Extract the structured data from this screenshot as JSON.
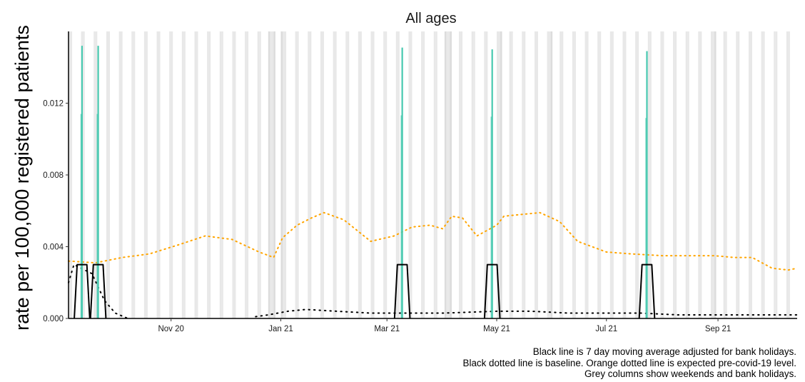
{
  "chart_data": {
    "type": "line",
    "title": "All ages",
    "ylabel": "rate per 100,000 registered patients",
    "xlabel": "",
    "xlim": [
      "2020-09-05",
      "2021-10-15"
    ],
    "ylim": [
      0,
      0.016
    ],
    "yticks": [
      0,
      0.004,
      0.008,
      0.012
    ],
    "ytick_labels": [
      "0.000",
      "0.004",
      "0.008",
      "0.012"
    ],
    "xticks": [
      "2020-11-01",
      "2021-01-01",
      "2021-03-01",
      "2021-05-01",
      "2021-07-01",
      "2021-09-01"
    ],
    "xtick_labels": [
      "Nov 20",
      "Jan 21",
      "Mar 21",
      "May 21",
      "Jul 21",
      "Sep 21"
    ],
    "grid": false,
    "legend": "none",
    "series": [
      {
        "role": "daily",
        "color": "#48c9b0",
        "spikes": [
          {
            "date": "2020-09-12",
            "value": 0.0152
          },
          {
            "date": "2020-09-21",
            "value": 0.0152
          },
          {
            "date": "2021-03-09",
            "value": 0.0151
          },
          {
            "date": "2021-04-28",
            "value": 0.015
          },
          {
            "date": "2021-07-23",
            "value": 0.0149
          }
        ]
      },
      {
        "role": "moving-average",
        "color": "#000000",
        "pulses": [
          {
            "start": "2020-09-09",
            "end": "2020-09-16",
            "value": 0.003
          },
          {
            "start": "2020-09-18",
            "end": "2020-09-25",
            "value": 0.003
          },
          {
            "start": "2021-03-06",
            "end": "2021-03-13",
            "value": 0.003
          },
          {
            "start": "2021-04-25",
            "end": "2021-05-02",
            "value": 0.003
          },
          {
            "start": "2021-07-20",
            "end": "2021-07-27",
            "value": 0.003
          }
        ]
      },
      {
        "role": "expected",
        "color": "#ffa500",
        "x": [
          "2020-09-05",
          "2020-09-20",
          "2020-10-05",
          "2020-10-20",
          "2020-11-05",
          "2020-11-20",
          "2020-12-05",
          "2020-12-20",
          "2020-12-28",
          "2021-01-02",
          "2021-01-10",
          "2021-01-18",
          "2021-01-25",
          "2021-02-05",
          "2021-02-20",
          "2021-03-05",
          "2021-03-15",
          "2021-03-25",
          "2021-04-01",
          "2021-04-06",
          "2021-04-12",
          "2021-04-20",
          "2021-05-01",
          "2021-05-05",
          "2021-05-15",
          "2021-05-25",
          "2021-06-05",
          "2021-06-15",
          "2021-07-01",
          "2021-07-15",
          "2021-08-01",
          "2021-08-15",
          "2021-08-30",
          "2021-09-10",
          "2021-09-20",
          "2021-10-01",
          "2021-10-10",
          "2021-10-15"
        ],
        "values": [
          0.0032,
          0.0031,
          0.0034,
          0.0036,
          0.0041,
          0.0046,
          0.0044,
          0.0037,
          0.0034,
          0.0045,
          0.0052,
          0.0056,
          0.0059,
          0.0055,
          0.0043,
          0.0046,
          0.0051,
          0.0052,
          0.005,
          0.0057,
          0.0056,
          0.0046,
          0.0052,
          0.0057,
          0.0058,
          0.0059,
          0.0054,
          0.0043,
          0.0037,
          0.0036,
          0.0035,
          0.0035,
          0.0035,
          0.0034,
          0.0034,
          0.0028,
          0.0027,
          0.0028
        ]
      },
      {
        "role": "baseline",
        "color": "#000000",
        "segments": [
          {
            "x": [
              "2020-09-05",
              "2020-09-08",
              "2020-09-12",
              "2020-09-18",
              "2020-09-25",
              "2020-10-01",
              "2020-10-08"
            ],
            "values": [
              0.002,
              0.003,
              0.0028,
              0.0025,
              0.001,
              0.0003,
              0.0
            ]
          },
          {
            "x": [
              "2020-12-18",
              "2020-12-25",
              "2021-01-05",
              "2021-01-15",
              "2021-02-01",
              "2021-02-20",
              "2021-03-10",
              "2021-04-01",
              "2021-05-01",
              "2021-05-20",
              "2021-06-10",
              "2021-07-01",
              "2021-07-20",
              "2021-08-10",
              "2021-09-01",
              "2021-09-20",
              "2021-10-15"
            ],
            "values": [
              0.0001,
              0.0002,
              0.0004,
              0.0005,
              0.0004,
              0.0003,
              0.0003,
              0.0003,
              0.0004,
              0.0004,
              0.0003,
              0.0003,
              0.0003,
              0.0002,
              0.0002,
              0.0002,
              0.0002
            ]
          }
        ]
      }
    ],
    "shading": {
      "color": "#e8e8e8",
      "darker_color": "#dcdcdc",
      "rule": "weekends and bank holidays",
      "bank_holidays": [
        "2020-12-25",
        "2020-12-28",
        "2021-01-01",
        "2021-04-02",
        "2021-04-05",
        "2021-05-03",
        "2021-05-31",
        "2021-08-30"
      ]
    }
  },
  "caption": {
    "line1": "Black line is 7 day moving average adjusted for bank holidays.",
    "line2": "Black dotted line is baseline. Orange dotted line is expected pre-covid-19 level.",
    "line3": "Grey columns show weekends and bank holidays."
  }
}
